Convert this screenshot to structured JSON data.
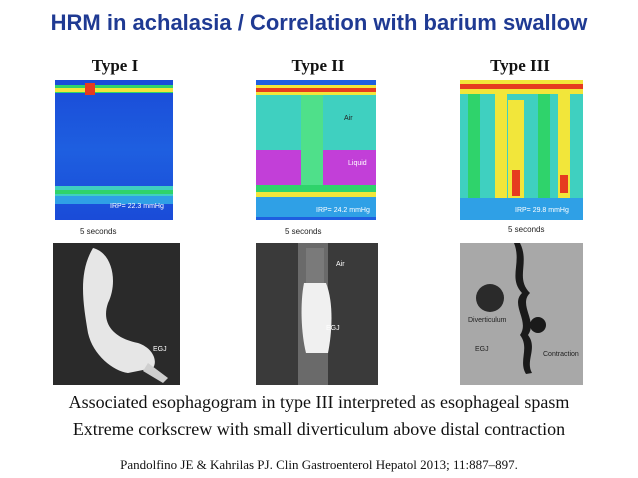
{
  "title": "HRM in achalasia / Correlation with barium swallow",
  "columns": [
    {
      "heading": "Type I",
      "irp": "IRP= 22.3 mmHg",
      "scale": "5 seconds",
      "xray_labels": [
        "EGJ"
      ]
    },
    {
      "heading": "Type II",
      "irp": "IRP= 24.2 mmHg",
      "scale": "5 seconds",
      "hrm_labels": [
        "Air",
        "Liquid"
      ],
      "xray_labels": [
        "Air",
        "EGJ"
      ]
    },
    {
      "heading": "Type III",
      "irp": "IRP= 29.8 mmHg",
      "scale": "5 seconds",
      "xray_labels": [
        "Diverticulum",
        "EGJ",
        "Contraction"
      ]
    }
  ],
  "captions": {
    "line1": "Associated esophagogram in type III interpreted as esophageal spasm",
    "line2": "Extreme corkscrew with small diverticulum above distal contraction",
    "reference": "Pandolfino JE & Kahrilas PJ. Clin Gastroenterol Hepatol 2013; 11:887–897."
  }
}
